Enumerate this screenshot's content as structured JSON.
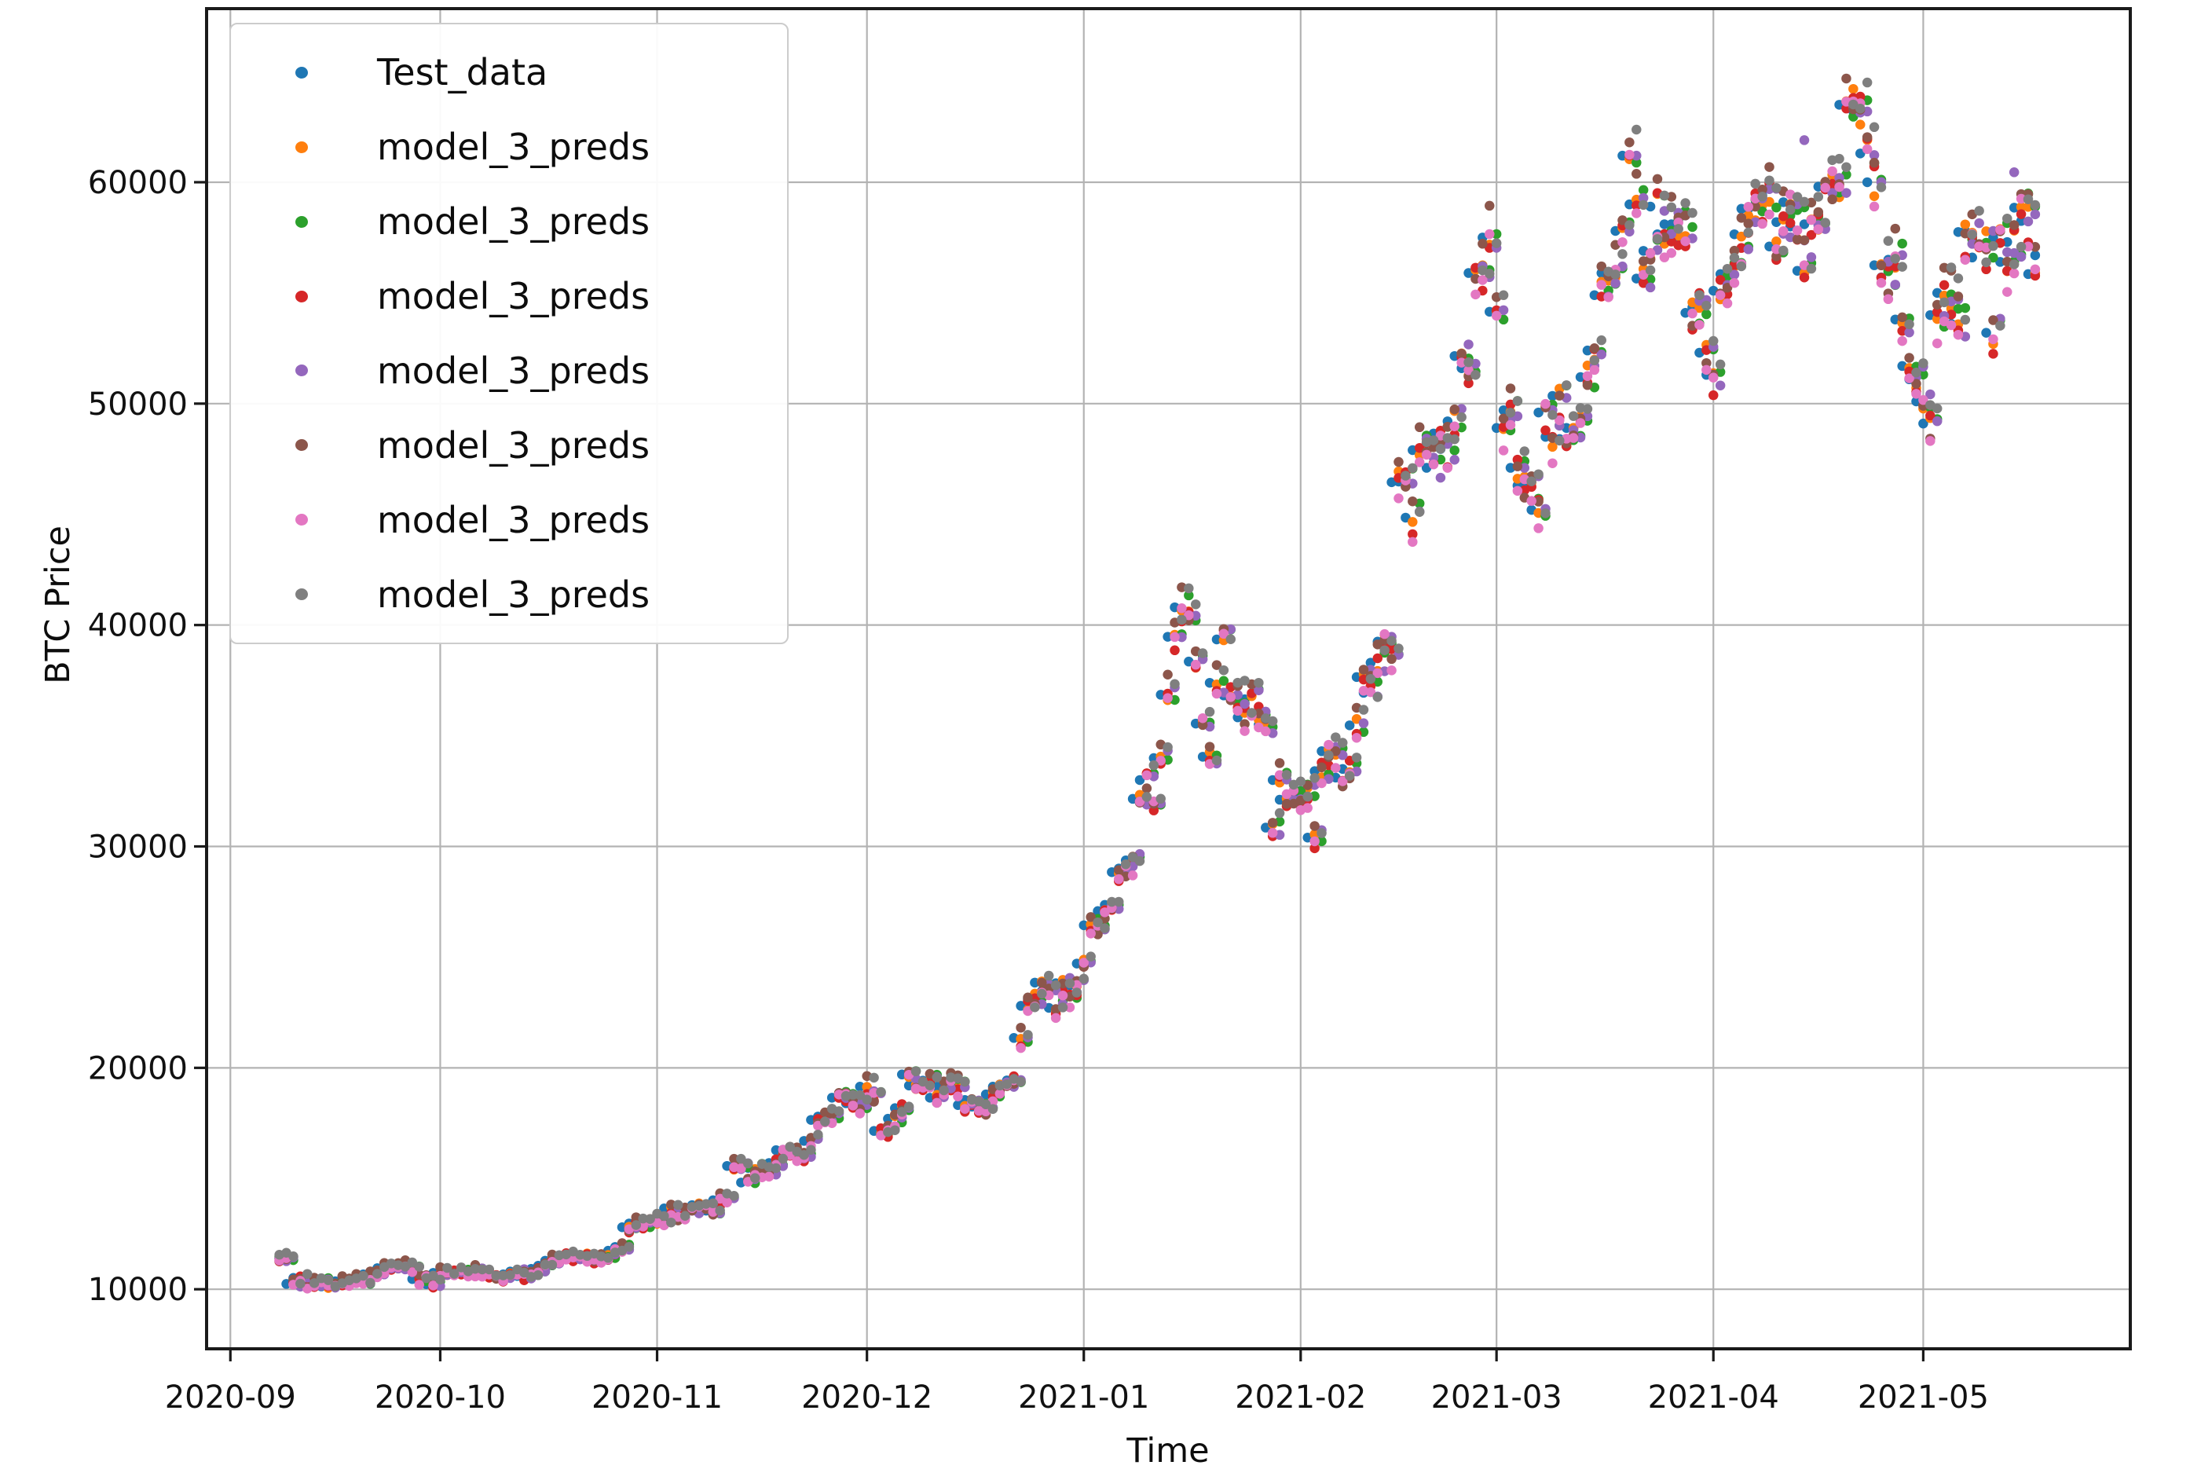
{
  "axes": {
    "xlabel": "Time",
    "ylabel": "BTC Price",
    "x_tick_labels": [
      "2020-09",
      "2020-10",
      "2020-11",
      "2020-12",
      "2021-01",
      "2021-02",
      "2021-03",
      "2021-04",
      "2021-05"
    ],
    "y_tick_labels": [
      "10000",
      "20000",
      "30000",
      "40000",
      "50000",
      "60000"
    ],
    "grid": true
  },
  "legend": {
    "entries": [
      {
        "label": "Test_data",
        "color": "#1f77b4"
      },
      {
        "label": "model_3_preds",
        "color": "#ff7f0e"
      },
      {
        "label": "model_3_preds",
        "color": "#2ca02c"
      },
      {
        "label": "model_3_preds",
        "color": "#d62728"
      },
      {
        "label": "model_3_preds",
        "color": "#9467bd"
      },
      {
        "label": "model_3_preds",
        "color": "#8c564b"
      },
      {
        "label": "model_3_preds",
        "color": "#e377c2"
      },
      {
        "label": "model_3_preds",
        "color": "#7f7f7f"
      }
    ],
    "position": "upper left"
  },
  "chart_data": {
    "type": "scatter",
    "title": "",
    "xlabel": "Time",
    "ylabel": "BTC Price",
    "legend_position": "upper left",
    "grid": true,
    "x_ticks": [
      "2020-09-01",
      "2020-10-01",
      "2020-11-01",
      "2020-12-01",
      "2021-01-01",
      "2021-02-01",
      "2021-03-01",
      "2021-04-01",
      "2021-05-01"
    ],
    "y_ticks": [
      10000,
      20000,
      30000,
      40000,
      50000,
      60000
    ],
    "xlim_days_from_2020_09_01": [
      -3.4,
      271.6
    ],
    "ylim": [
      7310,
      67840
    ],
    "marker_diameter_px": 12.5,
    "start_date": "2020-09-08",
    "test_series": {
      "name": "Test_data",
      "color": "#1f77b4",
      "daily_values": [
        11400,
        10240,
        10510,
        10170,
        10280,
        10370,
        10130,
        10230,
        10360,
        10400,
        10450,
        10330,
        10670,
        10790,
        10950,
        10940,
        10930,
        11080,
        10920,
        10460,
        10530,
        10230,
        10740,
        10690,
        10750,
        10770,
        10690,
        10840,
        10780,
        10620,
        10570,
        10550,
        10670,
        10800,
        10600,
        10670,
        10920,
        11060,
        11290,
        11370,
        11530,
        11420,
        11420,
        11500,
        11320,
        11360,
        11510,
        11740,
        11910,
        12800,
        12970,
        12930,
        13150,
        13030,
        13070,
        13650,
        13270,
        13440,
        13550,
        13800,
        13750,
        13550,
        14020,
        14130,
        15570,
        15580,
        14820,
        15480,
        15330,
        15290,
        15700,
        16280,
        16300,
        16050,
        15950,
        16700,
        17650,
        17800,
        17800,
        18650,
        18700,
        18400,
        18350,
        19150,
        18730,
        17150,
        17110,
        17700,
        18180,
        19700,
        19200,
        19200,
        19420,
        18650,
        19150,
        19350,
        19170,
        18320,
        18550,
        18250,
        18030,
        18800,
        19150,
        19250,
        19430,
        21350,
        22800,
        23110,
        23850,
        23470,
        22710,
        23820,
        23240,
        23730,
        24710,
        26440,
        26250,
        27080,
        27360,
        28840,
        29000,
        29370,
        32150,
        33000,
        32010,
        33990,
        36850,
        39470,
        40800,
        40250,
        38350,
        35550,
        34050,
        37390,
        39350,
        36820,
        36750,
        35830,
        36650,
        36000,
        35500,
        30850,
        33000,
        32110,
        32250,
        32360,
        32510,
        30400,
        33400,
        34300,
        34300,
        33110,
        33500,
        35470,
        37650,
        36940,
        38300,
        39250,
        38900,
        46450,
        46480,
        44850,
        47900,
        47950,
        47100,
        48650,
        47950,
        49200,
        52150,
        51600,
        55900,
        56100,
        57500,
        54150,
        48900,
        49700,
        47100,
        46300,
        46200,
        45200,
        49600,
        48500,
        50350,
        48400,
        48900,
        48900,
        51200,
        52400,
        54900,
        55900,
        55850,
        57800,
        61200,
        59000,
        55650,
        56900,
        58900,
        57650,
        58100,
        58100,
        57400,
        54100,
        54350,
        52300,
        51300,
        55100,
        55850,
        55800,
        57650,
        58800,
        58800,
        59000,
        59400,
        57100,
        58200,
        59100,
        58000,
        56000,
        58100,
        58300,
        59800,
        60000,
        59900,
        63500,
        63600,
        63200,
        61300,
        60000,
        56250,
        55700,
        56500,
        53800,
        51700,
        51100,
        50100,
        49100,
        54000,
        55000,
        54850,
        53600,
        57750,
        57800,
        56600,
        57200,
        53200,
        57500,
        56400,
        57300,
        58850,
        58250,
        55850,
        56700
      ]
    },
    "prediction_series": [
      {
        "name": "model_3_preds",
        "color": "#ff7f0e",
        "lag_days": 1,
        "noise_pct": 1.1,
        "bias_pct": 0.0
      },
      {
        "name": "model_3_preds",
        "color": "#2ca02c",
        "lag_days": 2,
        "noise_pct": 1.3,
        "bias_pct": 0.2
      },
      {
        "name": "model_3_preds",
        "color": "#d62728",
        "lag_days": 1,
        "noise_pct": 1.6,
        "bias_pct": -0.4
      },
      {
        "name": "model_3_preds",
        "color": "#9467bd",
        "lag_days": 2,
        "noise_pct": 1.2,
        "bias_pct": 0.0
      },
      {
        "name": "model_3_preds",
        "color": "#8c564b",
        "lag_days": 1,
        "noise_pct": 2.0,
        "bias_pct": 0.6
      },
      {
        "name": "model_3_preds",
        "color": "#e377c2",
        "lag_days": 1,
        "noise_pct": 1.7,
        "bias_pct": -0.8
      },
      {
        "name": "model_3_preds",
        "color": "#7f7f7f",
        "lag_days": 2,
        "noise_pct": 1.4,
        "bias_pct": 0.8
      }
    ],
    "outliers": [
      {
        "color": "#9467bd",
        "date": "2021-05-14",
        "value": 60450
      },
      {
        "color": "#9467bd",
        "date": "2021-04-14",
        "value": 61900
      }
    ]
  },
  "style": {
    "background": "#ffffff",
    "grid_color": "#b3b3b3",
    "spine_color": "#1a1a1a",
    "tick_text_color": "#111111"
  }
}
